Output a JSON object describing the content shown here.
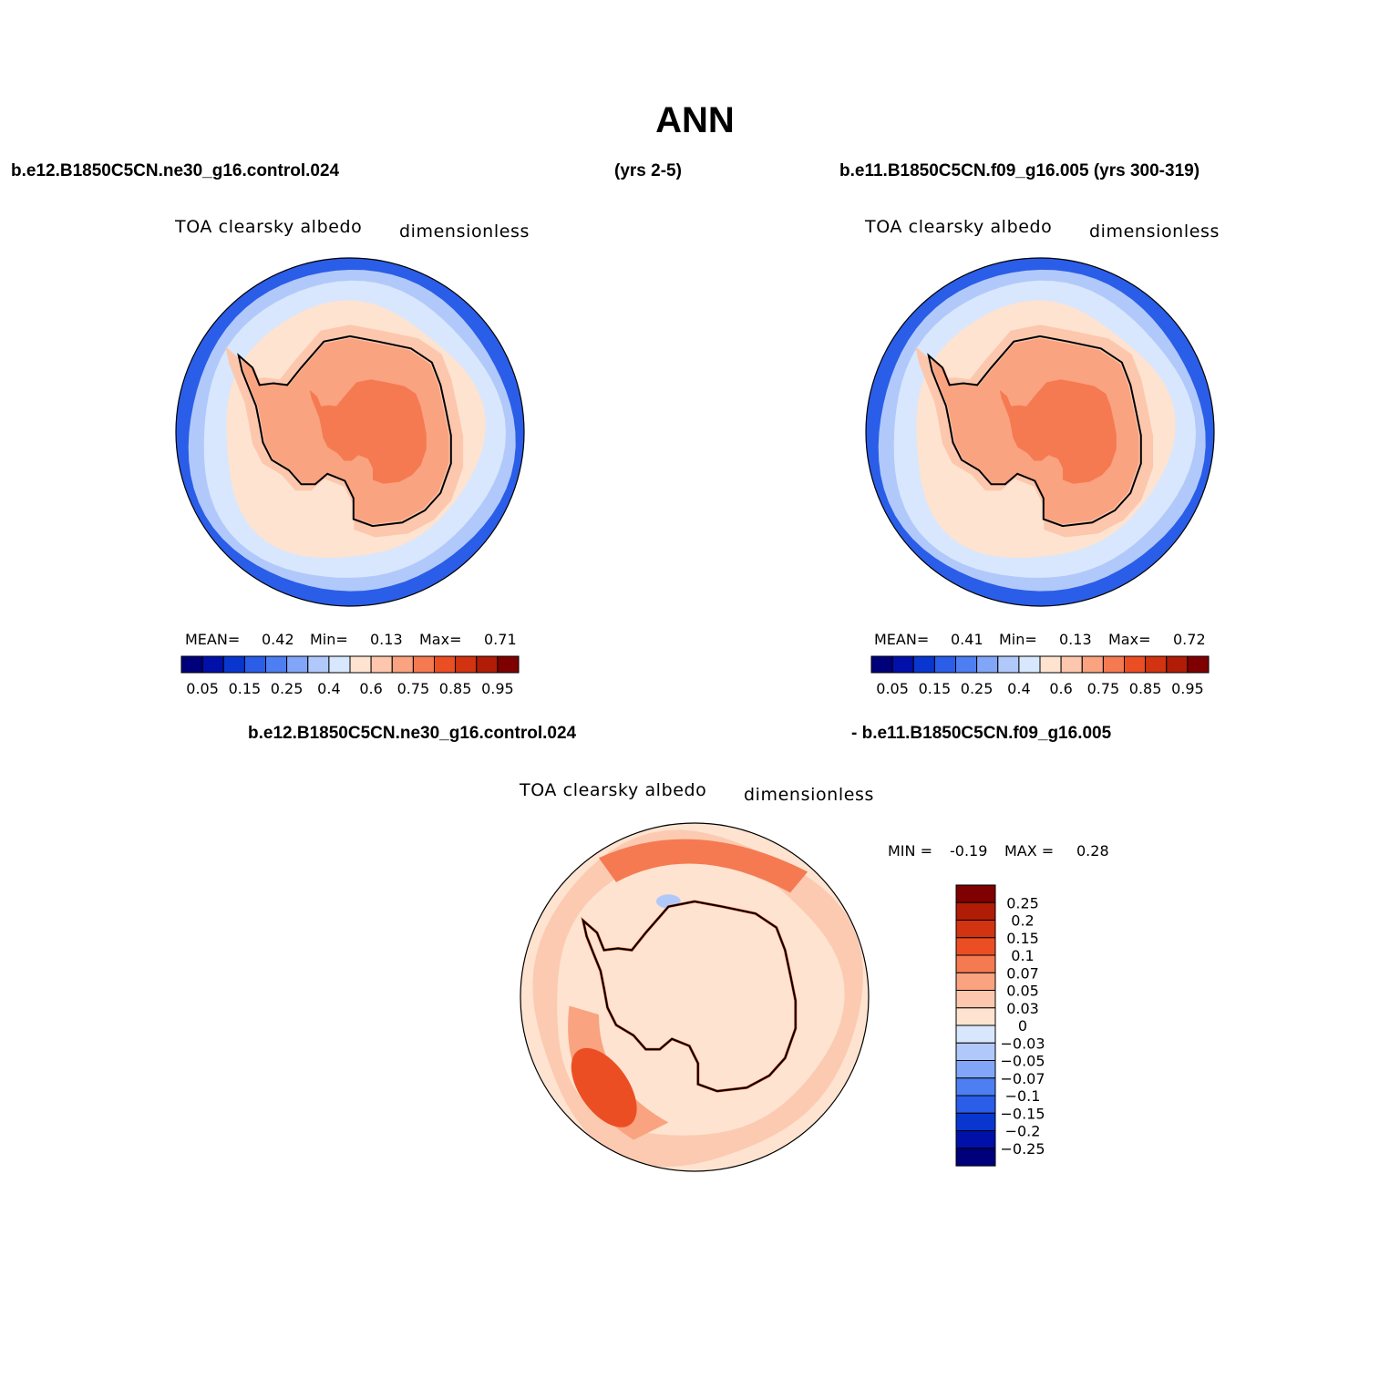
{
  "title": "ANN",
  "headers": {
    "left": "b.e12.B1850C5CN.ne30_g16.control.024",
    "middle": "(yrs 2-5)",
    "right": "b.e11.B1850C5CN.f09_g16.005 (yrs 300-319)",
    "diff_left": "b.e12.B1850C5CN.ne30_g16.control.024",
    "diff_right": "- b.e11.B1850C5CN.f09_g16.005"
  },
  "panels": [
    {
      "id": "test",
      "variable": "TOA clearsky albedo",
      "units": "dimensionless",
      "mean_label": "MEAN=",
      "mean": "0.42",
      "min_label": "Min=",
      "min": "0.13",
      "max_label": "Max=",
      "max": "0.71"
    },
    {
      "id": "control",
      "variable": "TOA clearsky albedo",
      "units": "dimensionless",
      "mean_label": "MEAN=",
      "mean": "0.41",
      "min_label": "Min=",
      "min": "0.13",
      "max_label": "Max=",
      "max": "0.72"
    },
    {
      "id": "difference",
      "variable": "TOA clearsky albedo",
      "units": "dimensionless",
      "min_label": "MIN =",
      "min": "-0.19",
      "max_label": "MAX =",
      "max": "0.28"
    }
  ],
  "chart_data": [
    {
      "type": "heatmap",
      "title": "TOA clearsky albedo",
      "projection": "south polar stereographic",
      "colorbar_orientation": "horizontal",
      "colorbar_levels": [
        0.05,
        0.1,
        0.15,
        0.2,
        0.25,
        0.3,
        0.4,
        0.5,
        0.6,
        0.7,
        0.75,
        0.8,
        0.85,
        0.9,
        0.95
      ],
      "colorbar_tick_labels": [
        "0.05",
        "0.15",
        "0.25",
        "0.4",
        "0.6",
        "0.75",
        "0.85",
        "0.95"
      ],
      "colors": [
        "#00007a",
        "#0010a8",
        "#0a36d0",
        "#2a5de8",
        "#4d7ff2",
        "#82a6f7",
        "#b1c9fa",
        "#d8e7fd",
        "#fde3d0",
        "#fcc7ad",
        "#f9a380",
        "#f57a52",
        "#ec4e24",
        "#d23310",
        "#b01c06",
        "#7e0000"
      ],
      "zones": {
        "open_ocean_outer": 0.15,
        "southern_ocean": 0.3,
        "sea_ice_edge": 0.4,
        "sea_ice": 0.5,
        "coastal_ice": 0.6,
        "antarctic_plateau": 0.7,
        "interior_maximum": 0.75
      },
      "mean": 0.42,
      "min": 0.13,
      "max": 0.71
    },
    {
      "type": "heatmap",
      "title": "TOA clearsky albedo",
      "projection": "south polar stereographic",
      "colorbar_orientation": "horizontal",
      "colorbar_levels": [
        0.05,
        0.1,
        0.15,
        0.2,
        0.25,
        0.3,
        0.4,
        0.5,
        0.6,
        0.7,
        0.75,
        0.8,
        0.85,
        0.9,
        0.95
      ],
      "colorbar_tick_labels": [
        "0.05",
        "0.15",
        "0.25",
        "0.4",
        "0.6",
        "0.75",
        "0.85",
        "0.95"
      ],
      "colors": [
        "#00007a",
        "#0010a8",
        "#0a36d0",
        "#2a5de8",
        "#4d7ff2",
        "#82a6f7",
        "#b1c9fa",
        "#d8e7fd",
        "#fde3d0",
        "#fcc7ad",
        "#f9a380",
        "#f57a52",
        "#ec4e24",
        "#d23310",
        "#b01c06",
        "#7e0000"
      ],
      "zones": {
        "open_ocean_outer": 0.15,
        "southern_ocean": 0.3,
        "sea_ice_edge": 0.4,
        "sea_ice": 0.5,
        "coastal_ice": 0.6,
        "antarctic_plateau": 0.7,
        "interior_maximum": 0.75
      },
      "mean": 0.41,
      "min": 0.13,
      "max": 0.72
    },
    {
      "type": "heatmap",
      "title": "TOA clearsky albedo",
      "projection": "south polar stereographic",
      "colorbar_orientation": "vertical",
      "colorbar_levels": [
        -0.25,
        -0.2,
        -0.15,
        -0.1,
        -0.07,
        -0.05,
        -0.03,
        0,
        0.03,
        0.05,
        0.07,
        0.1,
        0.15,
        0.2,
        0.25
      ],
      "colorbar_tick_labels": [
        "-0.25",
        "-0.2",
        "-0.15",
        "-0.1",
        "-0.07",
        "-0.05",
        "-0.03",
        "0",
        "0.03",
        "0.05",
        "0.07",
        "0.1",
        "0.15",
        "0.2",
        "0.25"
      ],
      "colors": [
        "#00007a",
        "#0010a8",
        "#0a36d0",
        "#2a5de8",
        "#4d7ff2",
        "#82a6f7",
        "#b1c9fa",
        "#d8e7fd",
        "#fde3d0",
        "#fcc7ad",
        "#f9a380",
        "#f57a52",
        "#ec4e24",
        "#d23310",
        "#b01c06",
        "#7e0000"
      ],
      "zones": {
        "background": 0.0,
        "ocean_ring": 0.03,
        "ross_sea_band": 0.05,
        "ross_sea_core": 0.1,
        "weddell_front": 0.07,
        "bellingshausen_patch": -0.05
      },
      "min": -0.19,
      "max": 0.28
    }
  ]
}
